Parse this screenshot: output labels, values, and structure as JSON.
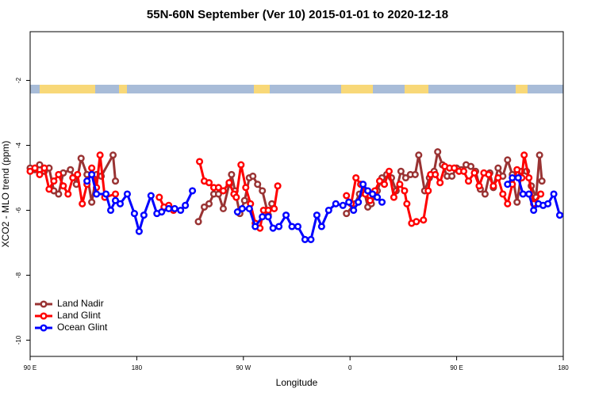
{
  "chart_data": {
    "type": "line",
    "title": "55N-60N September (Ver 10)   2015-01-01 to 2020-12-18",
    "x_label": "Longitude",
    "y_label": "XCO2 - MLO trend (ppm)",
    "xlim": [
      90,
      540
    ],
    "ylim": [
      -10.5,
      -0.5
    ],
    "xticks": [
      {
        "value": 90,
        "label": "90 E"
      },
      180,
      {
        "value": 270,
        "label": "90 W"
      },
      {
        "value": 360,
        "label": "0"
      },
      {
        "value": 450,
        "label": "90 E"
      },
      {
        "value": 540,
        "label": "180"
      }
    ],
    "yticks": [
      -2,
      -4,
      -6,
      -8,
      -10
    ],
    "legend": "bottom-left",
    "series": [
      {
        "name": "Land Nadir",
        "color": "#993333",
        "x": [
          90,
          94,
          98,
          102,
          106,
          110,
          114,
          118,
          124,
          129,
          133,
          138,
          142,
          146,
          150,
          160,
          162,
          null,
          232,
          237,
          241,
          245,
          249,
          253,
          258,
          260,
          263,
          267,
          271,
          275,
          278,
          282,
          286,
          291,
          294,
          null,
          357,
          364,
          368,
          372,
          375,
          378,
          383,
          387,
          391,
          395,
          399,
          403,
          407,
          411,
          415,
          418,
          423,
          427,
          431,
          434,
          438,
          442,
          446,
          450,
          454,
          458,
          462,
          466,
          470,
          474,
          478,
          481,
          485,
          489,
          493,
          497,
          501,
          505,
          509,
          513,
          517,
          520,
          522
        ],
        "values": [
          -4.7,
          -4.75,
          -4.6,
          -4.8,
          -4.7,
          -5.4,
          -5.5,
          -4.85,
          -4.75,
          -5.2,
          -4.4,
          -4.9,
          -5.75,
          -4.9,
          -4.95,
          -4.3,
          -5.1,
          null,
          -6.35,
          -5.9,
          -5.8,
          -5.5,
          -5.5,
          -5.95,
          -5.2,
          -4.9,
          -5.4,
          -6.1,
          -5.7,
          -5.0,
          -4.95,
          -5.2,
          -5.4,
          -6.15,
          -5.8,
          null,
          -6.1,
          -5.8,
          -5.5,
          -5.4,
          -5.9,
          -5.8,
          -5.4,
          -5.0,
          -4.9,
          -5.0,
          -5.4,
          -4.8,
          -5.0,
          -4.9,
          -4.9,
          -4.3,
          -5.4,
          -5.0,
          -4.8,
          -4.2,
          -4.6,
          -4.95,
          -4.95,
          -4.7,
          -4.75,
          -4.6,
          -4.65,
          -4.8,
          -5.35,
          -5.5,
          -4.85,
          -5.3,
          -4.7,
          -4.95,
          -4.45,
          -4.9,
          -5.75,
          -4.8,
          -4.8,
          -5.25,
          -5.6,
          -4.3,
          -5.1
        ]
      },
      {
        "name": "Land Glint",
        "color": "#ff0000",
        "x": [
          90,
          94,
          98,
          102,
          106,
          110,
          114,
          118,
          122,
          126,
          130,
          134,
          138,
          142,
          146,
          149,
          153,
          162,
          null,
          199,
          203,
          207,
          211,
          null,
          233,
          237,
          241,
          245,
          249,
          253,
          258,
          262,
          264,
          268,
          272,
          276,
          280,
          284,
          287,
          291,
          296,
          299,
          null,
          357,
          361,
          365,
          369,
          373,
          377,
          381,
          385,
          389,
          393,
          397,
          402,
          406,
          408,
          412,
          416,
          422,
          426,
          428,
          432,
          436,
          440,
          444,
          448,
          452,
          456,
          460,
          465,
          469,
          473,
          477,
          481,
          485,
          489,
          493,
          497,
          501,
          505,
          507,
          511,
          515,
          521
        ],
        "values": [
          -4.8,
          -4.7,
          -4.9,
          -4.7,
          -5.35,
          -5.1,
          -4.9,
          -5.25,
          -5.5,
          -5.0,
          -4.9,
          -5.8,
          -5.2,
          -4.7,
          -5.3,
          -4.3,
          -5.6,
          -5.5,
          null,
          -5.6,
          -5.9,
          -5.85,
          -6.0,
          null,
          -4.5,
          -5.1,
          -5.15,
          -5.3,
          -5.3,
          -5.4,
          -5.15,
          -5.5,
          -5.6,
          -4.6,
          -5.3,
          -5.8,
          -6.4,
          -6.55,
          -6.0,
          -6.0,
          -5.95,
          -5.25,
          null,
          -5.55,
          -5.8,
          -5.0,
          -5.2,
          -5.5,
          -5.7,
          -5.4,
          -5.1,
          -5.2,
          -4.8,
          -5.6,
          -5.2,
          -5.4,
          -5.8,
          -6.4,
          -6.35,
          -6.3,
          -5.4,
          -4.9,
          -4.9,
          -5.15,
          -4.65,
          -4.7,
          -4.7,
          -4.8,
          -4.8,
          -5.1,
          -4.85,
          -5.25,
          -4.85,
          -4.9,
          -5.25,
          -5.0,
          -5.5,
          -5.8,
          -5.2,
          -4.75,
          -5.0,
          -4.3,
          -5.0,
          -5.8,
          -5.5
        ]
      },
      {
        "name": "Ocean Glint",
        "color": "#0000ff",
        "x": [
          138,
          142,
          146,
          154,
          158,
          162,
          166,
          172,
          178,
          182,
          186,
          192,
          197,
          201,
          207,
          212,
          217,
          221,
          227,
          null,
          265,
          269,
          275,
          280,
          286,
          291,
          295,
          300,
          306,
          311,
          316,
          322,
          327,
          332,
          336,
          342,
          348,
          354,
          359,
          363,
          367,
          371,
          375,
          379,
          383,
          387,
          null,
          493,
          497,
          502,
          506,
          511,
          515,
          519,
          523,
          527,
          532,
          537
        ],
        "values": [
          -5.1,
          -4.9,
          -5.5,
          -5.5,
          -6.0,
          -5.7,
          -5.8,
          -5.5,
          -6.1,
          -6.65,
          -6.15,
          -5.55,
          -6.1,
          -6.05,
          -5.95,
          -5.95,
          -6.0,
          -5.85,
          -5.4,
          null,
          -6.05,
          -5.95,
          -5.95,
          -6.5,
          -6.2,
          -6.2,
          -6.55,
          -6.5,
          -6.15,
          -6.5,
          -6.5,
          -6.9,
          -6.9,
          -6.15,
          -6.5,
          -6.0,
          -5.8,
          -5.85,
          -5.75,
          -6.0,
          -5.75,
          -5.2,
          -5.4,
          -5.5,
          -5.6,
          -5.75,
          null,
          -5.2,
          -5.0,
          -5.0,
          -5.5,
          -5.5,
          -6.0,
          -5.8,
          -5.85,
          -5.8,
          -5.5,
          -6.15
        ]
      }
    ]
  }
}
